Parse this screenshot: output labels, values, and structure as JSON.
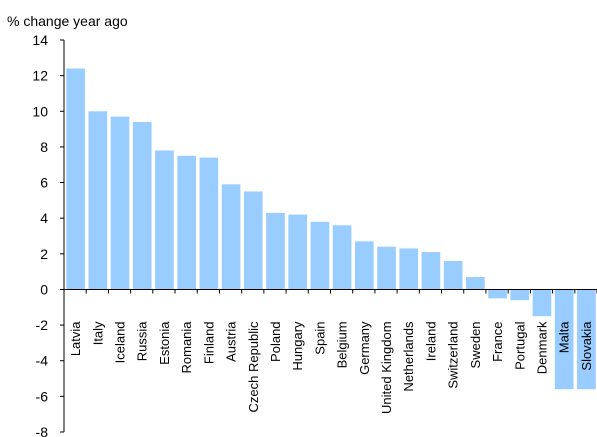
{
  "chart_data": {
    "type": "bar",
    "title": "",
    "xlabel": "",
    "ylabel": "% change year ago",
    "ylim": [
      -8,
      14
    ],
    "yticks": [
      "14",
      "12",
      "10",
      "8",
      "6",
      "4",
      "2",
      "0",
      "-2",
      "-4",
      "-6",
      "-8"
    ],
    "grid": false,
    "bar_color": "#99CCFF",
    "categories": [
      "Latvia",
      "Italy",
      "Iceland",
      "Russia",
      "Estonia",
      "Romania",
      "Finland",
      "Austria",
      "Czech Republic",
      "Poland",
      "Hungary",
      "Spain",
      "Belgium",
      "Germany",
      "United Kingdom",
      "Netherlands",
      "Ireland",
      "Switzerland",
      "Sweden",
      "France",
      "Portugal",
      "Denmark",
      "Malta",
      "Slovakia"
    ],
    "values": [
      12.4,
      10.0,
      9.7,
      9.4,
      7.8,
      7.5,
      7.4,
      5.9,
      5.5,
      4.3,
      4.2,
      3.8,
      3.6,
      2.7,
      2.4,
      2.3,
      2.1,
      1.6,
      0.7,
      -0.5,
      -0.6,
      -1.5,
      -5.6,
      -5.6
    ]
  }
}
